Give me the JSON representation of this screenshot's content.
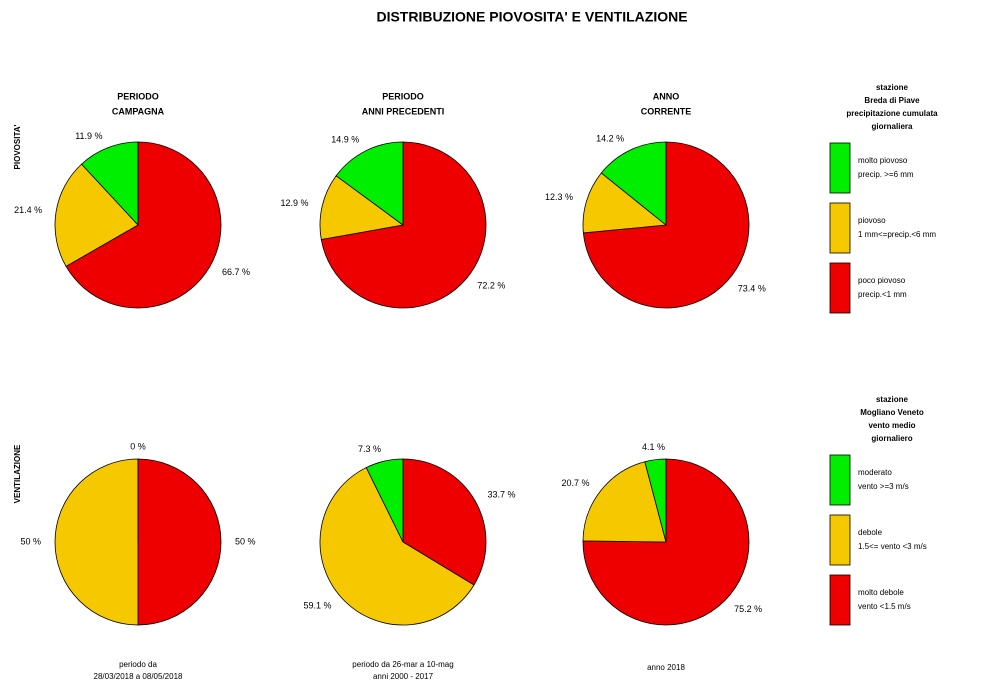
{
  "title": "DISTRIBUZIONE PIOVOSITA' E VENTILAZIONE",
  "row_labels": [
    "PIOVOSITA'",
    "VENTILAZIONE"
  ],
  "chart_data": [
    {
      "type": "pie",
      "title": [
        "PERIODO",
        "CAMPAGNA"
      ],
      "values": [
        11.9,
        21.4,
        66.7
      ],
      "value_labels": [
        "11.9 %",
        "21.4 %",
        "66.7 %"
      ],
      "colors": [
        "#00ee00",
        "#f5c800",
        "#ee0000"
      ]
    },
    {
      "type": "pie",
      "title": [
        "PERIODO",
        "ANNI PRECEDENTI"
      ],
      "values": [
        14.9,
        12.9,
        72.2
      ],
      "value_labels": [
        "14.9 %",
        "12.9 %",
        "72.2 %"
      ],
      "colors": [
        "#00ee00",
        "#f5c800",
        "#ee0000"
      ]
    },
    {
      "type": "pie",
      "title": [
        "ANNO",
        "CORRENTE"
      ],
      "values": [
        14.2,
        12.3,
        73.4
      ],
      "value_labels": [
        "14.2 %",
        "12.3 %",
        "73.4 %"
      ],
      "colors": [
        "#00ee00",
        "#f5c800",
        "#ee0000"
      ]
    },
    {
      "type": "pie",
      "values": [
        0,
        50,
        50
      ],
      "value_labels": [
        "0 %",
        "50 %",
        "50 %"
      ],
      "colors": [
        "#00ee00",
        "#f5c800",
        "#ee0000"
      ]
    },
    {
      "type": "pie",
      "values": [
        7.3,
        59.1,
        33.7
      ],
      "value_labels": [
        "7.3 %",
        "59.1 %",
        "33.7 %"
      ],
      "colors": [
        "#00ee00",
        "#f5c800",
        "#ee0000"
      ]
    },
    {
      "type": "pie",
      "values": [
        4.1,
        20.7,
        75.2
      ],
      "value_labels": [
        "4.1 %",
        "20.7 %",
        "75.2 %"
      ],
      "colors": [
        "#00ee00",
        "#f5c800",
        "#ee0000"
      ]
    }
  ],
  "legends": [
    {
      "title": [
        "stazione",
        "Breda di Piave",
        "precipitazione cumulata",
        "giornaliera"
      ],
      "entries": [
        {
          "lines": [
            "molto piovoso",
            "precip. >=6 mm"
          ],
          "color": "#00ee00"
        },
        {
          "lines": [
            "piovoso",
            "1 mm<=precip.<6 mm"
          ],
          "color": "#f5c800"
        },
        {
          "lines": [
            "poco piovoso",
            "precip.<1 mm"
          ],
          "color": "#ee0000"
        }
      ]
    },
    {
      "title": [
        "stazione",
        "Mogliano Veneto",
        "vento medio",
        "giornaliero"
      ],
      "entries": [
        {
          "lines": [
            "moderato",
            "vento >=3 m/s"
          ],
          "color": "#00ee00"
        },
        {
          "lines": [
            "debole",
            "1.5<= vento <3 m/s"
          ],
          "color": "#f5c800"
        },
        {
          "lines": [
            "molto debole",
            "vento <1.5 m/s"
          ],
          "color": "#ee0000"
        }
      ]
    }
  ],
  "footers": [
    [
      "periodo da",
      "28/03/2018 a 08/05/2018"
    ],
    [
      "periodo da 26-mar a 10-mag",
      "anni 2000 - 2017"
    ],
    [
      "anno 2018"
    ]
  ]
}
